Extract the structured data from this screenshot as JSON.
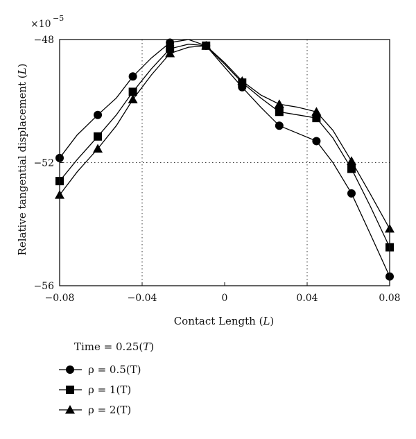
{
  "chart_data": {
    "type": "line",
    "xlabel": "Contact Length (L)",
    "ylabel": "Relative tangential displacement (L)",
    "y_multiplier": "×10^−5",
    "xlim": [
      -0.08,
      0.08
    ],
    "ylim": [
      -56,
      -48
    ],
    "xticks": [
      -0.08,
      -0.04,
      0,
      0.04,
      0.08
    ],
    "xtick_labels": [
      "−0.08",
      "−0.04",
      "0",
      "0.04",
      "0.08"
    ],
    "yticks": [
      -48,
      -52,
      -56
    ],
    "ytick_labels": [
      "−48",
      "−52",
      "−56"
    ],
    "grid": "dotted at x = −0.04, x = 0.04 and y = −52",
    "legend": {
      "title": "Time = 0.25(T)",
      "placement": "below"
    },
    "series": [
      {
        "name": "ρ = 0.5(T)",
        "marker": "circle",
        "x": [
          -0.08,
          -0.0615,
          -0.0445,
          -0.0265,
          -0.009,
          0.0085,
          0.0265,
          0.0445,
          0.0615,
          0.08
        ],
        "y": [
          -51.85,
          -50.45,
          -49.2,
          -48.1,
          -48.2,
          -49.55,
          -50.8,
          -51.3,
          -53.0,
          -55.7
        ],
        "line_x": [
          -0.08,
          -0.0715,
          -0.0615,
          -0.0525,
          -0.0445,
          -0.0355,
          -0.0265,
          -0.0175,
          -0.009,
          0.0,
          0.0085,
          0.0175,
          0.0265,
          0.0355,
          0.0445,
          0.0525,
          0.0615,
          0.0705,
          0.08
        ],
        "line_y": [
          -51.85,
          -51.1,
          -50.45,
          -49.9,
          -49.2,
          -48.6,
          -48.1,
          -48.0,
          -48.2,
          -48.9,
          -49.55,
          -50.2,
          -50.8,
          -51.05,
          -51.3,
          -52.0,
          -53.0,
          -54.3,
          -55.7
        ]
      },
      {
        "name": "ρ = 1(T)",
        "marker": "square",
        "x": [
          -0.08,
          -0.0615,
          -0.0445,
          -0.0265,
          -0.009,
          0.0085,
          0.0265,
          0.0445,
          0.0615,
          0.08
        ],
        "y": [
          -52.6,
          -51.15,
          -49.7,
          -48.3,
          -48.2,
          -49.4,
          -50.35,
          -50.55,
          -52.2,
          -54.75
        ],
        "line_x": [
          -0.08,
          -0.0715,
          -0.0615,
          -0.0525,
          -0.0445,
          -0.0355,
          -0.0265,
          -0.0175,
          -0.009,
          0.0,
          0.0085,
          0.0175,
          0.0265,
          0.0355,
          0.0445,
          0.0525,
          0.0615,
          0.0705,
          0.08
        ],
        "line_y": [
          -52.6,
          -51.9,
          -51.15,
          -50.45,
          -49.7,
          -48.95,
          -48.3,
          -48.15,
          -48.2,
          -48.8,
          -49.4,
          -49.9,
          -50.35,
          -50.45,
          -50.55,
          -51.2,
          -52.2,
          -53.4,
          -54.75
        ]
      },
      {
        "name": "ρ = 2(T)",
        "marker": "triangle",
        "x": [
          -0.08,
          -0.0615,
          -0.0445,
          -0.0265,
          -0.009,
          0.0085,
          0.0265,
          0.0445,
          0.0615,
          0.08
        ],
        "y": [
          -53.05,
          -51.55,
          -49.95,
          -48.45,
          -48.2,
          -49.35,
          -50.1,
          -50.35,
          -51.95,
          -54.15
        ],
        "line_x": [
          -0.08,
          -0.0715,
          -0.0615,
          -0.0525,
          -0.0445,
          -0.0355,
          -0.0265,
          -0.0175,
          -0.009,
          0.0,
          0.0085,
          0.0175,
          0.0265,
          0.0355,
          0.0445,
          0.0525,
          0.0615,
          0.0705,
          0.08
        ],
        "line_y": [
          -53.05,
          -52.3,
          -51.55,
          -50.8,
          -49.95,
          -49.15,
          -48.45,
          -48.25,
          -48.2,
          -48.75,
          -49.35,
          -49.8,
          -50.1,
          -50.2,
          -50.35,
          -50.95,
          -51.95,
          -53.0,
          -54.15
        ]
      }
    ]
  }
}
